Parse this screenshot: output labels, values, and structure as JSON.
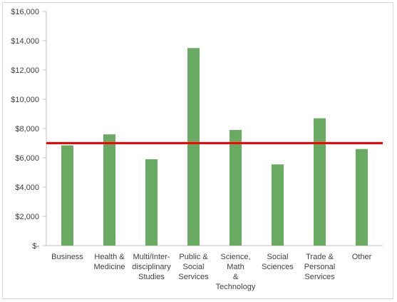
{
  "chart_data": {
    "type": "bar",
    "title": "",
    "xlabel": "",
    "ylabel": "",
    "categories": [
      [
        "Business"
      ],
      [
        "Health &",
        "Medicine"
      ],
      [
        "Multi/Inter-",
        "disciplinary",
        "Studies"
      ],
      [
        "Public &",
        "Social",
        "Services"
      ],
      [
        "Science,",
        "Math",
        "&",
        "Technology"
      ],
      [
        "Social",
        "Sciences"
      ],
      [
        "Trade &",
        "Personal",
        "Services"
      ],
      [
        "Other"
      ]
    ],
    "values": [
      6850,
      7600,
      5900,
      13500,
      7900,
      5550,
      8700,
      6600
    ],
    "ylim": [
      0,
      16000
    ],
    "y_ticks": [
      0,
      2000,
      4000,
      6000,
      8000,
      10000,
      12000,
      14000,
      16000
    ],
    "y_tick_labels": [
      "$-",
      "$2,000",
      "$4,000",
      "$6,000",
      "$8,000",
      "$10,000",
      "$12,000",
      "$14,000",
      "$16,000"
    ],
    "reference_line": 7000,
    "grid": false,
    "legend": "none",
    "colors": {
      "bar": "#6aab64",
      "reference": "#ff0000",
      "axis": "#bfbfbf"
    }
  }
}
